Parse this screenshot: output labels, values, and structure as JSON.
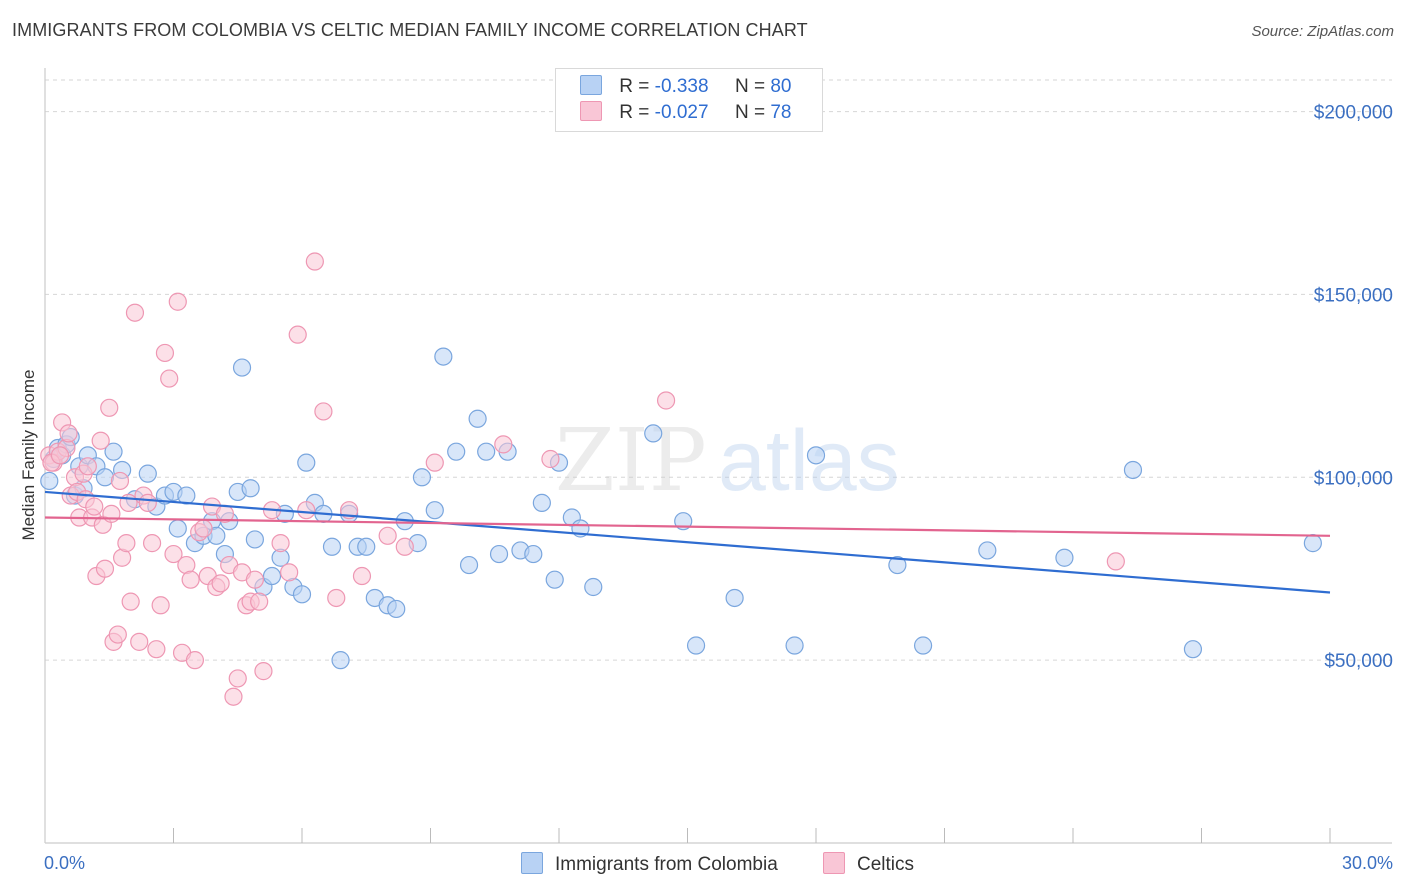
{
  "title": "IMMIGRANTS FROM COLOMBIA VS CELTIC MEDIAN FAMILY INCOME CORRELATION CHART",
  "source": "Source: ZipAtlas.com",
  "watermark": {
    "part1": "ZIP",
    "part2": "atlas"
  },
  "legend": {
    "rows": [
      {
        "r_label": "R =",
        "r_value": "-0.338",
        "n_label": "N =",
        "n_value": "80"
      },
      {
        "r_label": "R =",
        "r_value": "-0.027",
        "n_label": "N =",
        "n_value": "78"
      }
    ]
  },
  "bottom_legend": [
    {
      "label": "Immigrants from Colombia"
    },
    {
      "label": "Celtics"
    }
  ],
  "colors": {
    "blue_fill": "#b8d2f4",
    "blue_stroke": "#7aa6de",
    "blue_line": "#2f6dd1",
    "pink_fill": "#f9c6d6",
    "pink_stroke": "#ee97b3",
    "pink_line": "#e2648f",
    "grid": "#d6d6d6",
    "axis_text": "#3b6fc1"
  },
  "chart_data": {
    "type": "scatter",
    "title": "IMMIGRANTS FROM COLOMBIA VS CELTIC MEDIAN FAMILY INCOME CORRELATION CHART",
    "xlabel": "",
    "ylabel": "Median Family Income",
    "xlim": [
      0,
      30
    ],
    "ylim": [
      0,
      210000
    ],
    "x_tick_labels": [
      "0.0%",
      "30.0%"
    ],
    "y_ticks": [
      50000,
      100000,
      150000,
      200000
    ],
    "y_tick_labels": [
      "$50,000",
      "$100,000",
      "$150,000",
      "$200,000"
    ],
    "series": [
      {
        "name": "Immigrants from Colombia",
        "r": -0.338,
        "n": 80,
        "trend": {
          "x": [
            0,
            30
          ],
          "y": [
            96000,
            68500
          ]
        },
        "points": [
          [
            0.2,
            105000
          ],
          [
            0.3,
            108000
          ],
          [
            0.4,
            106000
          ],
          [
            0.5,
            109000
          ],
          [
            0.6,
            111000
          ],
          [
            0.7,
            95000
          ],
          [
            0.8,
            103000
          ],
          [
            1.0,
            106000
          ],
          [
            1.2,
            103000
          ],
          [
            1.4,
            100000
          ],
          [
            1.6,
            107000
          ],
          [
            1.8,
            102000
          ],
          [
            2.1,
            94000
          ],
          [
            2.4,
            101000
          ],
          [
            2.6,
            92000
          ],
          [
            2.8,
            95000
          ],
          [
            3.0,
            96000
          ],
          [
            3.1,
            86000
          ],
          [
            3.3,
            95000
          ],
          [
            3.5,
            82000
          ],
          [
            3.7,
            84000
          ],
          [
            3.9,
            88000
          ],
          [
            4.0,
            84000
          ],
          [
            4.2,
            79000
          ],
          [
            4.3,
            88000
          ],
          [
            4.5,
            96000
          ],
          [
            4.6,
            130000
          ],
          [
            4.8,
            97000
          ],
          [
            4.9,
            83000
          ],
          [
            5.1,
            70000
          ],
          [
            5.3,
            73000
          ],
          [
            5.5,
            78000
          ],
          [
            5.6,
            90000
          ],
          [
            5.8,
            70000
          ],
          [
            6.0,
            68000
          ],
          [
            6.1,
            104000
          ],
          [
            6.3,
            93000
          ],
          [
            6.5,
            90000
          ],
          [
            6.7,
            81000
          ],
          [
            6.9,
            50000
          ],
          [
            7.1,
            90000
          ],
          [
            7.3,
            81000
          ],
          [
            7.5,
            81000
          ],
          [
            7.7,
            67000
          ],
          [
            8.0,
            65000
          ],
          [
            8.2,
            64000
          ],
          [
            8.4,
            88000
          ],
          [
            8.7,
            82000
          ],
          [
            8.8,
            100000
          ],
          [
            9.1,
            91000
          ],
          [
            9.3,
            133000
          ],
          [
            9.6,
            107000
          ],
          [
            9.9,
            76000
          ],
          [
            10.1,
            116000
          ],
          [
            10.3,
            107000
          ],
          [
            10.6,
            79000
          ],
          [
            10.8,
            107000
          ],
          [
            11.1,
            80000
          ],
          [
            11.4,
            79000
          ],
          [
            11.6,
            93000
          ],
          [
            11.9,
            72000
          ],
          [
            12.0,
            104000
          ],
          [
            12.3,
            89000
          ],
          [
            12.5,
            86000
          ],
          [
            12.8,
            70000
          ],
          [
            14.2,
            112000
          ],
          [
            14.9,
            88000
          ],
          [
            15.2,
            54000
          ],
          [
            16.1,
            67000
          ],
          [
            17.5,
            54000
          ],
          [
            18.0,
            106000
          ],
          [
            19.9,
            76000
          ],
          [
            20.5,
            54000
          ],
          [
            22.0,
            80000
          ],
          [
            23.8,
            78000
          ],
          [
            25.4,
            102000
          ],
          [
            26.8,
            53000
          ],
          [
            29.6,
            82000
          ],
          [
            0.1,
            99000
          ],
          [
            0.9,
            97000
          ]
        ]
      },
      {
        "name": "Celtics",
        "r": -0.027,
        "n": 78,
        "trend": {
          "x": [
            0,
            30
          ],
          "y": [
            89000,
            84000
          ]
        },
        "points": [
          [
            0.1,
            106000
          ],
          [
            0.2,
            104000
          ],
          [
            0.3,
            107000
          ],
          [
            0.4,
            115000
          ],
          [
            0.5,
            108000
          ],
          [
            0.6,
            95000
          ],
          [
            0.7,
            100000
          ],
          [
            0.8,
            89000
          ],
          [
            0.9,
            101000
          ],
          [
            1.0,
            103000
          ],
          [
            1.1,
            89000
          ],
          [
            1.2,
            73000
          ],
          [
            1.3,
            110000
          ],
          [
            1.4,
            75000
          ],
          [
            1.5,
            119000
          ],
          [
            1.6,
            55000
          ],
          [
            1.7,
            57000
          ],
          [
            1.8,
            78000
          ],
          [
            1.9,
            82000
          ],
          [
            2.0,
            66000
          ],
          [
            2.1,
            145000
          ],
          [
            2.2,
            55000
          ],
          [
            2.3,
            95000
          ],
          [
            2.4,
            93000
          ],
          [
            2.5,
            82000
          ],
          [
            2.6,
            53000
          ],
          [
            2.7,
            65000
          ],
          [
            2.8,
            134000
          ],
          [
            2.9,
            127000
          ],
          [
            3.0,
            79000
          ],
          [
            3.1,
            148000
          ],
          [
            3.2,
            52000
          ],
          [
            3.3,
            76000
          ],
          [
            3.4,
            72000
          ],
          [
            3.5,
            50000
          ],
          [
            3.6,
            85000
          ],
          [
            3.7,
            86000
          ],
          [
            3.8,
            73000
          ],
          [
            3.9,
            92000
          ],
          [
            4.0,
            70000
          ],
          [
            4.1,
            71000
          ],
          [
            4.2,
            90000
          ],
          [
            4.3,
            76000
          ],
          [
            4.4,
            40000
          ],
          [
            4.5,
            45000
          ],
          [
            4.6,
            74000
          ],
          [
            4.7,
            65000
          ],
          [
            4.8,
            66000
          ],
          [
            4.9,
            72000
          ],
          [
            5.0,
            66000
          ],
          [
            5.1,
            47000
          ],
          [
            5.3,
            91000
          ],
          [
            5.5,
            82000
          ],
          [
            5.7,
            74000
          ],
          [
            5.9,
            139000
          ],
          [
            6.1,
            91000
          ],
          [
            6.3,
            159000
          ],
          [
            6.5,
            118000
          ],
          [
            6.8,
            67000
          ],
          [
            7.1,
            91000
          ],
          [
            7.4,
            73000
          ],
          [
            8.0,
            84000
          ],
          [
            8.4,
            81000
          ],
          [
            9.1,
            104000
          ],
          [
            10.7,
            109000
          ],
          [
            11.8,
            105000
          ],
          [
            14.5,
            121000
          ],
          [
            25.0,
            77000
          ],
          [
            0.15,
            104000
          ],
          [
            0.35,
            106000
          ],
          [
            0.55,
            112000
          ],
          [
            0.75,
            96000
          ],
          [
            0.95,
            94000
          ],
          [
            1.15,
            92000
          ],
          [
            1.35,
            87000
          ],
          [
            1.55,
            90000
          ],
          [
            1.75,
            99000
          ],
          [
            1.95,
            93000
          ]
        ]
      }
    ]
  }
}
